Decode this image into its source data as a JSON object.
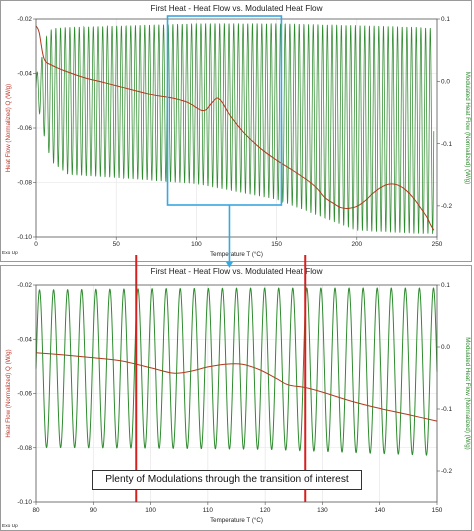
{
  "colors": {
    "heat_flow": "#b03a1e",
    "modulated": "#2e8b2e",
    "highlight_box": "#3aa7e0",
    "marker_lines": "#d62020",
    "left_axis_label": "#c0392b",
    "right_axis_label": "#2e8b2e"
  },
  "annotation": "Plenty of Modulations through the transition of interest",
  "chart_data": [
    {
      "type": "line",
      "title": "First Heat - Heat Flow vs. Modulated Heat Flow",
      "xlabel": "Temperature  T  (°C)",
      "ylabel": "Heat Flow (Normalized)  Q  (W/g)",
      "y2label": "Modulated Heat Flow (Normalized) (W/g)",
      "corner_label": "Exo Up",
      "xlim": [
        0,
        250
      ],
      "ylim": [
        -0.1,
        -0.02
      ],
      "y2lim": [
        -0.25,
        0.1
      ],
      "x_ticks": [
        "0",
        "50",
        "100",
        "150",
        "200",
        "250"
      ],
      "y_ticks": [
        "-0.02",
        "-0.04",
        "-0.06",
        "-0.08",
        "-0.10"
      ],
      "y2_ticks": [
        "0.1",
        "0.0",
        "-0.1",
        "-0.2"
      ],
      "grid": true,
      "series": [
        {
          "axis": "left",
          "style": "smooth",
          "x": [
            0,
            2,
            5,
            10,
            20,
            30,
            40,
            50,
            60,
            70,
            80,
            85,
            90,
            95,
            100,
            103,
            106,
            110,
            113,
            116,
            120,
            125,
            130,
            140,
            150,
            160,
            170,
            175,
            180,
            185,
            190,
            195,
            200,
            205,
            210,
            215,
            220,
            225,
            230,
            235,
            240,
            244,
            246,
            248
          ],
          "values": [
            -0.0225,
            -0.025,
            -0.0345,
            -0.037,
            -0.0395,
            -0.0415,
            -0.043,
            -0.0445,
            -0.046,
            -0.0475,
            -0.0485,
            -0.049,
            -0.0497,
            -0.0507,
            -0.0525,
            -0.0535,
            -0.0533,
            -0.0505,
            -0.049,
            -0.0505,
            -0.0545,
            -0.0585,
            -0.062,
            -0.0675,
            -0.0718,
            -0.0755,
            -0.0795,
            -0.082,
            -0.0855,
            -0.0875,
            -0.0892,
            -0.0895,
            -0.0888,
            -0.0868,
            -0.084,
            -0.0818,
            -0.0806,
            -0.0808,
            -0.0825,
            -0.0855,
            -0.0895,
            -0.093,
            -0.0955,
            -0.0975
          ]
        },
        {
          "axis": "right",
          "style": "modulated",
          "cycles": 85,
          "x": [
            0,
            3,
            6,
            10,
            20,
            50,
            100,
            150,
            200,
            240,
            248
          ],
          "upper": [
            0.01,
            0.03,
            0.07,
            0.085,
            0.087,
            0.089,
            0.093,
            0.093,
            0.09,
            0.087,
            0.085
          ],
          "lower": [
            -0.03,
            -0.06,
            -0.1,
            -0.13,
            -0.15,
            -0.155,
            -0.165,
            -0.19,
            -0.24,
            -0.245,
            -0.245
          ]
        }
      ]
    },
    {
      "type": "line",
      "title": "First Heat - Heat Flow vs. Modulated Heat Flow",
      "xlabel": "Temperature  T  (°C)",
      "ylabel": "Heat Flow (Normalized)  Q  (W/g)",
      "y2label": "Modulated Heat Flow (Normalized) (W/g)",
      "corner_label": "Exo Up",
      "xlim": [
        80,
        150
      ],
      "ylim": [
        -0.1,
        -0.02
      ],
      "y2lim": [
        -0.25,
        0.1
      ],
      "x_ticks": [
        "80",
        "90",
        "100",
        "110",
        "120",
        "130",
        "140",
        "150"
      ],
      "y_ticks": [
        "-0.02",
        "-0.04",
        "-0.06",
        "-0.08",
        "-0.10"
      ],
      "y2_ticks": [
        "0.1",
        "0.0",
        "-0.1",
        "-0.2"
      ],
      "grid": true,
      "markers_x": [
        97.5,
        127
      ],
      "series": [
        {
          "axis": "left",
          "style": "smooth",
          "x": [
            80,
            85,
            90,
            95,
            100,
            104,
            107,
            110,
            113,
            116,
            119,
            122,
            124,
            127,
            130,
            135,
            140,
            145,
            150
          ],
          "values": [
            -0.045,
            -0.0458,
            -0.0468,
            -0.048,
            -0.0505,
            -0.0525,
            -0.0518,
            -0.0502,
            -0.0492,
            -0.0492,
            -0.0512,
            -0.0545,
            -0.0568,
            -0.0578,
            -0.0595,
            -0.0628,
            -0.0655,
            -0.0678,
            -0.0702
          ]
        },
        {
          "axis": "right",
          "style": "modulated",
          "cycles": 28.5,
          "x": [
            80,
            100,
            120,
            150
          ],
          "upper": [
            0.092,
            0.094,
            0.095,
            0.095
          ],
          "lower": [
            -0.162,
            -0.163,
            -0.165,
            -0.175
          ]
        }
      ]
    }
  ]
}
